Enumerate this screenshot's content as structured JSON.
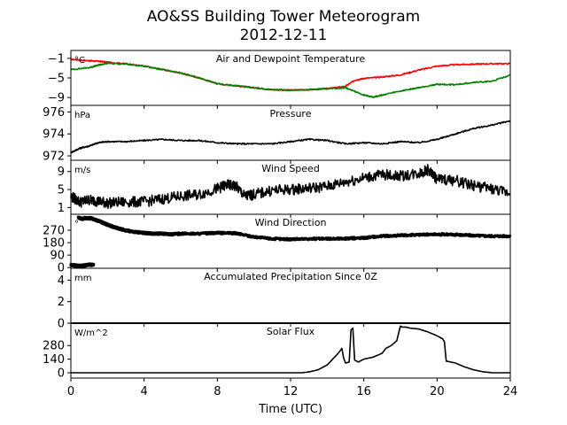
{
  "figure": {
    "title_line1": "AO&SS Building Tower Meteorogram",
    "title_line2": "2012-12-11",
    "xlabel": "Time (UTC)"
  },
  "chart_data": [
    {
      "id": "temp",
      "type": "line",
      "title": "Air and Dewpoint Temperature",
      "unit": "°C",
      "ylim": [
        -10.6,
        0.6
      ],
      "yticks": [
        -1,
        -5,
        -9
      ],
      "xlim": [
        0,
        24
      ],
      "series": [
        {
          "color": "#ff0000",
          "x": [
            0,
            1,
            1.5,
            2,
            3,
            4,
            5,
            6,
            7,
            8,
            9,
            10,
            11,
            12,
            13,
            14,
            15,
            15.5,
            16,
            17,
            18,
            19,
            20,
            21,
            22,
            23,
            24
          ],
          "y": [
            -1.2,
            -1.5,
            -1.6,
            -1.8,
            -2.1,
            -2.6,
            -3.3,
            -4.0,
            -5.0,
            -6.2,
            -6.6,
            -7.0,
            -7.4,
            -7.5,
            -7.4,
            -7.2,
            -6.7,
            -5.5,
            -5.1,
            -4.8,
            -4.4,
            -3.4,
            -2.6,
            -2.3,
            -2.2,
            -2.1,
            -2.1
          ]
        },
        {
          "color": "#008000",
          "x": [
            0,
            1,
            1.5,
            2,
            3,
            4,
            5,
            6,
            7,
            8,
            9,
            10,
            11,
            12,
            13,
            14,
            15,
            16,
            16.5,
            17,
            18,
            19,
            20,
            21,
            22,
            23,
            24
          ],
          "y": [
            -3.3,
            -2.9,
            -2.4,
            -2.0,
            -2.2,
            -2.6,
            -3.3,
            -4.0,
            -5.0,
            -6.2,
            -6.6,
            -7.0,
            -7.4,
            -7.5,
            -7.4,
            -7.2,
            -7.0,
            -8.5,
            -8.9,
            -8.5,
            -7.7,
            -7.0,
            -6.3,
            -6.4,
            -5.9,
            -5.7,
            -4.4
          ]
        }
      ]
    },
    {
      "id": "pressure",
      "type": "line",
      "title": "Pressure",
      "unit": "hPa",
      "ylim": [
        971.6,
        976.6
      ],
      "yticks": [
        976,
        974,
        972
      ],
      "xlim": [
        0,
        24
      ],
      "series": [
        {
          "color": "#000000",
          "x": [
            0,
            0.5,
            1,
            1.5,
            2,
            3,
            4,
            5,
            6,
            7,
            8,
            9,
            10,
            11,
            12,
            13,
            14,
            15,
            16,
            17,
            18,
            19,
            20,
            21,
            22,
            23,
            24
          ],
          "y": [
            972.3,
            972.7,
            972.9,
            973.2,
            973.3,
            973.3,
            973.4,
            973.5,
            973.4,
            973.4,
            973.2,
            973.1,
            973.1,
            973.1,
            973.3,
            973.5,
            973.4,
            973.1,
            973.2,
            973.1,
            973.3,
            973.2,
            973.5,
            974.0,
            974.5,
            974.8,
            975.2
          ]
        }
      ]
    },
    {
      "id": "wind_speed",
      "type": "line",
      "title": "Wind Speed",
      "unit": "m/s",
      "ylim": [
        -0.5,
        11.5
      ],
      "yticks": [
        9,
        5,
        1
      ],
      "xlim": [
        0,
        24
      ],
      "series": [
        {
          "color": "#000000",
          "x": [
            0,
            0.5,
            1,
            1.5,
            2,
            3,
            4,
            5,
            6,
            7,
            8,
            8.5,
            9,
            9.5,
            10,
            11,
            12,
            13,
            14,
            15,
            16,
            17,
            18,
            19,
            19.5,
            20,
            21,
            22,
            23,
            24
          ],
          "y": [
            3.5,
            2.2,
            2.7,
            2.4,
            2.0,
            2.2,
            2.3,
            2.9,
            3.5,
            3.9,
            5.2,
            6.0,
            5.8,
            3.5,
            3.9,
            4.8,
            5.0,
            5.3,
            5.7,
            6.7,
            7.6,
            8.3,
            8.0,
            8.6,
            9.4,
            7.3,
            7.0,
            5.9,
            5.1,
            4.2
          ]
        }
      ]
    },
    {
      "id": "wind_dir",
      "type": "scatter",
      "title": "Wind Direction",
      "unit": "°",
      "ylim": [
        -5,
        385
      ],
      "yticks": [
        270,
        180,
        90,
        0
      ],
      "xlim": [
        0,
        24
      ],
      "series": [
        {
          "color": "#000000",
          "x": [
            0,
            0.25,
            0.5,
            0.75,
            1,
            1.25
          ],
          "y": [
            20,
            15,
            12,
            15,
            22,
            18
          ]
        },
        {
          "color": "#000000",
          "x": [
            0.4,
            0.6,
            0.8,
            1.1,
            1.4,
            1.8,
            2.2,
            2.6,
            3,
            3.5,
            4,
            4.5,
            5,
            5.5,
            6,
            7,
            8,
            9,
            10,
            11,
            12,
            13,
            14,
            15,
            16,
            17,
            18,
            19,
            20,
            21,
            22,
            23,
            24
          ],
          "y": [
            360,
            352,
            358,
            355,
            342,
            320,
            300,
            282,
            268,
            258,
            250,
            245,
            245,
            240,
            245,
            245,
            250,
            248,
            222,
            208,
            205,
            208,
            208,
            210,
            215,
            228,
            232,
            238,
            240,
            238,
            232,
            228,
            228
          ]
        }
      ]
    },
    {
      "id": "precip",
      "type": "line",
      "title": "Accumulated Precipitation Since 0Z",
      "unit": "mm",
      "ylim": [
        0,
        5.1
      ],
      "yticks": [
        4,
        2,
        0
      ],
      "xlim": [
        0,
        24
      ],
      "series": [
        {
          "color": "#000000",
          "x": [
            0,
            24
          ],
          "y": [
            0,
            0
          ]
        }
      ]
    },
    {
      "id": "solar",
      "type": "line",
      "title": "Solar Flux",
      "unit": "W/m^2",
      "ylim": [
        -55,
        510
      ],
      "yticks": [
        280,
        140,
        0
      ],
      "xlim": [
        0,
        24
      ],
      "series": [
        {
          "color": "#000000",
          "x": [
            0,
            12.6,
            13,
            13.5,
            14,
            14.3,
            14.6,
            14.8,
            14.9,
            15.0,
            15.2,
            15.3,
            15.4,
            15.5,
            15.7,
            16,
            16.5,
            17,
            17.2,
            17.5,
            17.8,
            18.0,
            18.1,
            18.3,
            18.5,
            19,
            19.5,
            20,
            20.3,
            20.4,
            20.5,
            21,
            21.5,
            22,
            22.5,
            23,
            24
          ],
          "y": [
            0,
            0,
            8,
            30,
            80,
            140,
            200,
            250,
            150,
            100,
            110,
            440,
            460,
            130,
            110,
            140,
            160,
            200,
            250,
            280,
            330,
            480,
            470,
            470,
            460,
            450,
            420,
            380,
            350,
            320,
            120,
            100,
            60,
            30,
            10,
            0,
            0
          ]
        }
      ]
    }
  ],
  "xaxis": {
    "xlim": [
      0,
      24
    ],
    "ticks": [
      0,
      4,
      8,
      12,
      16,
      20,
      24
    ]
  }
}
